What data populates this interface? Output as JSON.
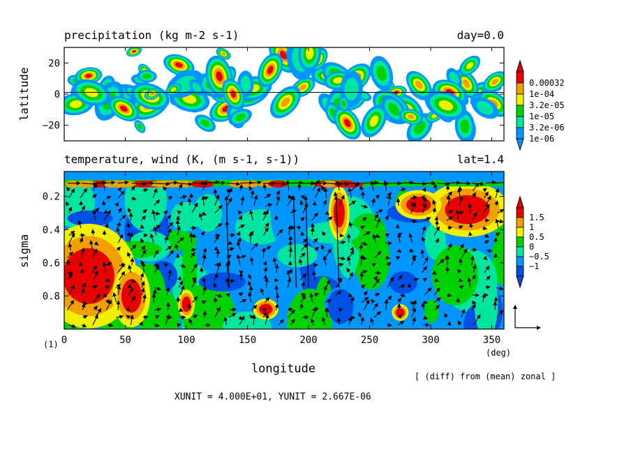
{
  "chart_data": [
    {
      "type": "heatmap",
      "title": "precipitation (kg m-2 s-1)",
      "right_title": "day=0.0",
      "xlabel": "",
      "ylabel": "latitude",
      "xlim": [
        0,
        360
      ],
      "ylim": [
        -30,
        30
      ],
      "yticks": [
        20,
        0,
        -20
      ],
      "zero_line": true,
      "colorbar": {
        "labels": [
          "0.00032",
          "1e-04",
          "3.2e-05",
          "1e-05",
          "3.2e-06",
          "1e-06"
        ],
        "colors": [
          "#e60000",
          "#f0a000",
          "#f0f000",
          "#00d200",
          "#00e6a0",
          "#0096ff"
        ]
      }
    },
    {
      "type": "heatmap",
      "title": "temperature, wind (K, (m s-1, s-1))",
      "right_title": "lat=1.4",
      "xlabel": "longitude",
      "ylabel": "sigma",
      "xlim": [
        0,
        360
      ],
      "ylim": [
        1.0,
        0.05
      ],
      "xticks": [
        0,
        50,
        100,
        150,
        200,
        250,
        300,
        350
      ],
      "yticks": [
        0.2,
        0.4,
        0.6,
        0.8
      ],
      "x_unit": "(deg)",
      "y_unit": "(1)",
      "colorbar": {
        "labels": [
          "1.5",
          "1",
          "0.5",
          "0",
          "−0.5",
          "−1"
        ],
        "colors": [
          "#e60000",
          "#f0a000",
          "#f0f000",
          "#00d200",
          "#00e6a0",
          "#0096ff",
          "#0050e6"
        ]
      },
      "vectors": true
    }
  ],
  "annotations": {
    "diff_note": "[ (diff) from (mean) zonal ]",
    "units_line": "XUNIT = 4.000E+01, YUNIT = 2.667E-06"
  }
}
